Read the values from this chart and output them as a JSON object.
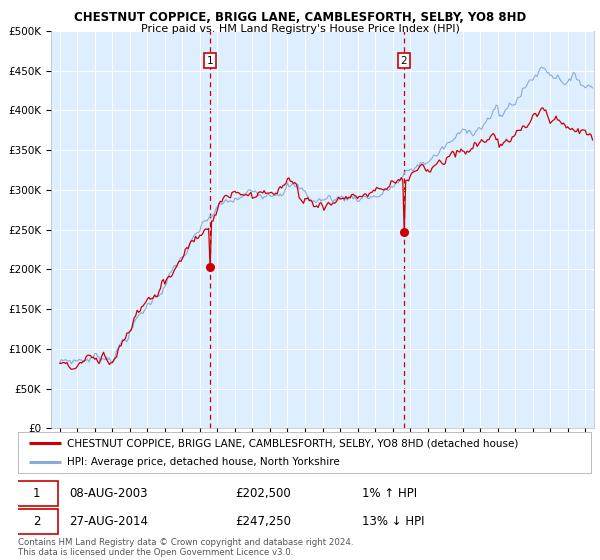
{
  "title": "CHESTNUT COPPICE, BRIGG LANE, CAMBLESFORTH, SELBY, YO8 8HD",
  "subtitle": "Price paid vs. HM Land Registry's House Price Index (HPI)",
  "ylabel_ticks": [
    "£0",
    "£50K",
    "£100K",
    "£150K",
    "£200K",
    "£250K",
    "£300K",
    "£350K",
    "£400K",
    "£450K",
    "£500K"
  ],
  "ytick_values": [
    0,
    50000,
    100000,
    150000,
    200000,
    250000,
    300000,
    350000,
    400000,
    450000,
    500000
  ],
  "ylim": [
    0,
    500000
  ],
  "xlim_start": 1994.5,
  "xlim_end": 2025.5,
  "background_color": "#ffffff",
  "plot_bg_color": "#ddeeff",
  "grid_color": "#ffffff",
  "hpi_line_color": "#88aadd",
  "price_line_color": "#cc0000",
  "marker_color": "#cc0000",
  "vline_color": "#cc0000",
  "sale1_x": 2003.58,
  "sale1_y": 202500,
  "sale2_x": 2014.63,
  "sale2_y": 247250,
  "legend_line1": "CHESTNUT COPPICE, BRIGG LANE, CAMBLESFORTH, SELBY, YO8 8HD (detached house)",
  "legend_line2": "HPI: Average price, detached house, North Yorkshire",
  "table_row1_num": "1",
  "table_row1_date": "08-AUG-2003",
  "table_row1_price": "£202,500",
  "table_row1_hpi": "1% ↑ HPI",
  "table_row2_num": "2",
  "table_row2_date": "27-AUG-2014",
  "table_row2_price": "£247,250",
  "table_row2_hpi": "13% ↓ HPI",
  "footer": "Contains HM Land Registry data © Crown copyright and database right 2024.\nThis data is licensed under the Open Government Licence v3.0.",
  "title_fontsize": 8.5,
  "subtitle_fontsize": 8.0,
  "tick_fontsize": 7.5,
  "legend_fontsize": 7.5,
  "table_fontsize": 8.5
}
